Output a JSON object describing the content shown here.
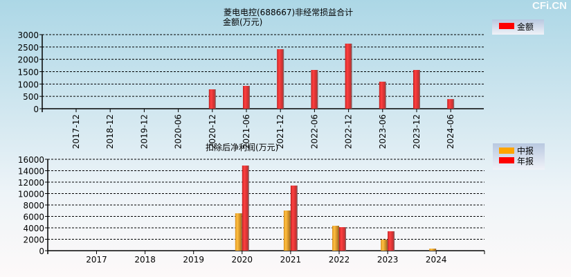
{
  "watermark": "CFi.CN",
  "chart_data": [
    {
      "type": "bar",
      "title": "菱电电控(688667)非经常损益合计",
      "ylabel": "金额(万元)",
      "categories": [
        "2017-12",
        "2018-12",
        "2019-12",
        "2020-06",
        "2020-12",
        "2021-06",
        "2021-12",
        "2022-06",
        "2022-12",
        "2023-06",
        "2023-12",
        "2024-06"
      ],
      "series": [
        {
          "name": "金额",
          "color": "#ff0000",
          "values": [
            null,
            null,
            null,
            null,
            785,
            925,
            2410,
            1570,
            2635,
            1095,
            1570,
            390
          ]
        }
      ],
      "ylim": [
        0,
        3000
      ],
      "yticks": [
        0,
        500,
        1000,
        1500,
        2000,
        2500,
        3000
      ],
      "grid": true,
      "legend": "top-right"
    },
    {
      "type": "bar",
      "title": "扣除后净利润(万元)",
      "categories": [
        "2017",
        "2018",
        "2019",
        "2020",
        "2021",
        "2022",
        "2023",
        "2024"
      ],
      "series": [
        {
          "name": "中报",
          "color": "#ffa500",
          "values": [
            null,
            null,
            null,
            6550,
            7030,
            4360,
            1940,
            360
          ]
        },
        {
          "name": "年报",
          "color": "#ff0000",
          "values": [
            null,
            null,
            null,
            14900,
            11400,
            4120,
            3400,
            null
          ]
        }
      ],
      "ylim": [
        0,
        16000
      ],
      "yticks": [
        0,
        2000,
        4000,
        6000,
        8000,
        10000,
        12000,
        14000,
        16000
      ],
      "grid": true,
      "legend": "top-right"
    }
  ]
}
